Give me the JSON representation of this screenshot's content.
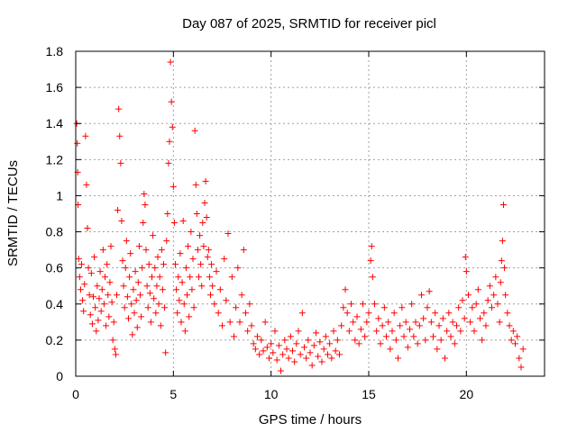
{
  "chart_data": {
    "type": "scatter",
    "title": "Day 087 of 2025, SRMTID for receiver picl",
    "xlabel": "GPS time / hours",
    "ylabel": "SRMTID / TECUs",
    "xlim": [
      0,
      24
    ],
    "ylim": [
      0,
      1.8
    ],
    "xticks": [
      0,
      5,
      10,
      15,
      20
    ],
    "xtick_labels": [
      "0",
      "5",
      "10",
      "15",
      "20"
    ],
    "yticks": [
      0,
      0.2,
      0.4,
      0.6,
      0.8,
      1.0,
      1.2,
      1.4,
      1.6,
      1.8
    ],
    "ytick_labels": [
      "0",
      "0.2",
      "0.4",
      "0.6",
      "0.8",
      "1",
      "1.2",
      "1.4",
      "1.6",
      "1.8"
    ],
    "grid": true,
    "marker": "+",
    "color": "#ff0000",
    "series": [
      {
        "name": "SRMTID",
        "points": [
          [
            0.05,
            1.4
          ],
          [
            0.08,
            1.29
          ],
          [
            0.1,
            1.13
          ],
          [
            0.12,
            0.95
          ],
          [
            0.15,
            0.65
          ],
          [
            0.2,
            0.55
          ],
          [
            0.25,
            0.48
          ],
          [
            0.3,
            0.62
          ],
          [
            0.35,
            0.42
          ],
          [
            0.4,
            0.36
          ],
          [
            0.45,
            0.51
          ],
          [
            0.5,
            1.33
          ],
          [
            0.55,
            1.06
          ],
          [
            0.6,
            0.82
          ],
          [
            0.65,
            0.6
          ],
          [
            0.7,
            0.45
          ],
          [
            0.75,
            0.34
          ],
          [
            0.8,
            0.57
          ],
          [
            0.85,
            0.29
          ],
          [
            0.9,
            0.44
          ],
          [
            0.95,
            0.66
          ],
          [
            1.0,
            0.38
          ],
          [
            1.05,
            0.25
          ],
          [
            1.1,
            0.5
          ],
          [
            1.15,
            0.31
          ],
          [
            1.2,
            0.43
          ],
          [
            1.25,
            0.58
          ],
          [
            1.3,
            0.36
          ],
          [
            1.35,
            0.48
          ],
          [
            1.4,
            0.7
          ],
          [
            1.45,
            0.4
          ],
          [
            1.5,
            0.55
          ],
          [
            1.55,
            0.28
          ],
          [
            1.6,
            0.62
          ],
          [
            1.65,
            0.45
          ],
          [
            1.7,
            0.33
          ],
          [
            1.75,
            0.52
          ],
          [
            1.8,
            0.72
          ],
          [
            1.85,
            0.41
          ],
          [
            1.9,
            0.2
          ],
          [
            1.95,
            0.3
          ],
          [
            2.0,
            0.15
          ],
          [
            2.05,
            0.12
          ],
          [
            2.1,
            0.45
          ],
          [
            2.15,
            0.92
          ],
          [
            2.2,
            1.48
          ],
          [
            2.25,
            1.33
          ],
          [
            2.3,
            1.18
          ],
          [
            2.35,
            0.86
          ],
          [
            2.4,
            0.64
          ],
          [
            2.45,
            0.5
          ],
          [
            2.5,
            0.38
          ],
          [
            2.55,
            0.6
          ],
          [
            2.6,
            0.75
          ],
          [
            2.65,
            0.44
          ],
          [
            2.7,
            0.32
          ],
          [
            2.75,
            0.55
          ],
          [
            2.8,
            0.68
          ],
          [
            2.85,
            0.4
          ],
          [
            2.9,
            0.23
          ],
          [
            2.95,
            0.48
          ],
          [
            3.0,
            0.35
          ],
          [
            3.05,
            0.58
          ],
          [
            3.1,
            0.42
          ],
          [
            3.15,
            0.27
          ],
          [
            3.2,
            0.52
          ],
          [
            3.25,
            0.72
          ],
          [
            3.3,
            0.45
          ],
          [
            3.35,
            0.33
          ],
          [
            3.4,
            0.6
          ],
          [
            3.45,
            0.85
          ],
          [
            3.5,
            1.01
          ],
          [
            3.55,
            0.95
          ],
          [
            3.6,
            0.7
          ],
          [
            3.65,
            0.5
          ],
          [
            3.7,
            0.38
          ],
          [
            3.75,
            0.62
          ],
          [
            3.8,
            0.46
          ],
          [
            3.85,
            0.3
          ],
          [
            3.9,
            0.55
          ],
          [
            3.95,
            0.78
          ],
          [
            4.0,
            0.43
          ],
          [
            4.05,
            0.6
          ],
          [
            4.1,
            0.35
          ],
          [
            4.15,
            0.5
          ],
          [
            4.2,
            0.66
          ],
          [
            4.25,
            0.4
          ],
          [
            4.3,
            0.55
          ],
          [
            4.35,
            0.28
          ],
          [
            4.4,
            0.7
          ],
          [
            4.45,
            0.48
          ],
          [
            4.5,
            0.62
          ],
          [
            4.55,
            0.38
          ],
          [
            4.6,
            0.13
          ],
          [
            4.65,
            0.75
          ],
          [
            4.7,
            0.9
          ],
          [
            4.75,
            1.18
          ],
          [
            4.8,
            1.3
          ],
          [
            4.85,
            1.74
          ],
          [
            4.9,
            1.52
          ],
          [
            4.95,
            1.38
          ],
          [
            5.0,
            1.05
          ],
          [
            5.05,
            0.85
          ],
          [
            5.1,
            0.62
          ],
          [
            5.15,
            0.48
          ],
          [
            5.2,
            0.35
          ],
          [
            5.25,
            0.55
          ],
          [
            5.3,
            0.42
          ],
          [
            5.35,
            0.68
          ],
          [
            5.4,
            0.3
          ],
          [
            5.45,
            0.52
          ],
          [
            5.5,
            0.86
          ],
          [
            5.55,
            0.4
          ],
          [
            5.6,
            0.25
          ],
          [
            5.65,
            0.6
          ],
          [
            5.7,
            0.45
          ],
          [
            5.75,
            0.72
          ],
          [
            5.8,
            0.33
          ],
          [
            5.85,
            0.55
          ],
          [
            5.9,
            0.8
          ],
          [
            5.95,
            0.48
          ],
          [
            6.0,
            0.65
          ],
          [
            6.05,
            0.38
          ],
          [
            6.1,
            1.36
          ],
          [
            6.15,
            1.06
          ],
          [
            6.2,
            0.9
          ],
          [
            6.25,
            0.7
          ],
          [
            6.3,
            0.55
          ],
          [
            6.35,
            0.78
          ],
          [
            6.4,
            0.62
          ],
          [
            6.45,
            0.5
          ],
          [
            6.5,
            0.85
          ],
          [
            6.55,
            0.72
          ],
          [
            6.6,
            0.96
          ],
          [
            6.65,
            1.08
          ],
          [
            6.7,
            0.88
          ],
          [
            6.75,
            0.66
          ],
          [
            6.8,
            0.7
          ],
          [
            6.85,
            0.55
          ],
          [
            6.9,
            0.45
          ],
          [
            6.95,
            0.62
          ],
          [
            7.0,
            0.5
          ],
          [
            7.1,
            0.4
          ],
          [
            7.2,
            0.58
          ],
          [
            7.3,
            0.35
          ],
          [
            7.4,
            0.48
          ],
          [
            7.5,
            0.28
          ],
          [
            7.6,
            0.65
          ],
          [
            7.7,
            0.42
          ],
          [
            7.8,
            0.79
          ],
          [
            7.9,
            0.3
          ],
          [
            8.0,
            0.55
          ],
          [
            8.1,
            0.22
          ],
          [
            8.2,
            0.38
          ],
          [
            8.3,
            0.6
          ],
          [
            8.4,
            0.3
          ],
          [
            8.5,
            0.45
          ],
          [
            8.6,
            0.7
          ],
          [
            8.7,
            0.35
          ],
          [
            8.8,
            0.25
          ],
          [
            8.9,
            0.4
          ],
          [
            9.0,
            0.28
          ],
          [
            9.1,
            0.18
          ],
          [
            9.2,
            0.15
          ],
          [
            9.3,
            0.22
          ],
          [
            9.4,
            0.12
          ],
          [
            9.5,
            0.2
          ],
          [
            9.6,
            0.14
          ],
          [
            9.7,
            0.3
          ],
          [
            9.8,
            0.16
          ],
          [
            9.9,
            0.1
          ],
          [
            10.0,
            0.18
          ],
          [
            10.1,
            0.13
          ],
          [
            10.2,
            0.25
          ],
          [
            10.3,
            0.09
          ],
          [
            10.4,
            0.17
          ],
          [
            10.5,
            0.03
          ],
          [
            10.6,
            0.12
          ],
          [
            10.7,
            0.2
          ],
          [
            10.8,
            0.15
          ],
          [
            10.9,
            0.1
          ],
          [
            11.0,
            0.22
          ],
          [
            11.1,
            0.14
          ],
          [
            11.2,
            0.08
          ],
          [
            11.3,
            0.18
          ],
          [
            11.4,
            0.25
          ],
          [
            11.5,
            0.12
          ],
          [
            11.6,
            0.35
          ],
          [
            11.7,
            0.16
          ],
          [
            11.8,
            0.1
          ],
          [
            11.9,
            0.2
          ],
          [
            12.0,
            0.13
          ],
          [
            12.1,
            0.06
          ],
          [
            12.2,
            0.17
          ],
          [
            12.3,
            0.24
          ],
          [
            12.4,
            0.11
          ],
          [
            12.5,
            0.19
          ],
          [
            12.6,
            0.08
          ],
          [
            12.7,
            0.15
          ],
          [
            12.8,
            0.22
          ],
          [
            12.9,
            0.12
          ],
          [
            13.0,
            0.18
          ],
          [
            13.1,
            0.1
          ],
          [
            13.2,
            0.25
          ],
          [
            13.3,
            0.14
          ],
          [
            13.4,
            0.2
          ],
          [
            13.5,
            0.12
          ],
          [
            13.6,
            0.28
          ],
          [
            13.7,
            0.38
          ],
          [
            13.8,
            0.48
          ],
          [
            13.9,
            0.35
          ],
          [
            14.0,
            0.25
          ],
          [
            14.1,
            0.4
          ],
          [
            14.2,
            0.3
          ],
          [
            14.3,
            0.2
          ],
          [
            14.4,
            0.33
          ],
          [
            14.5,
            0.18
          ],
          [
            14.6,
            0.26
          ],
          [
            14.7,
            0.4
          ],
          [
            14.8,
            0.22
          ],
          [
            14.9,
            0.3
          ],
          [
            15.0,
            0.35
          ],
          [
            15.1,
            0.64
          ],
          [
            15.15,
            0.72
          ],
          [
            15.2,
            0.55
          ],
          [
            15.3,
            0.4
          ],
          [
            15.4,
            0.25
          ],
          [
            15.5,
            0.32
          ],
          [
            15.6,
            0.18
          ],
          [
            15.7,
            0.28
          ],
          [
            15.8,
            0.38
          ],
          [
            15.9,
            0.22
          ],
          [
            16.0,
            0.3
          ],
          [
            16.1,
            0.15
          ],
          [
            16.2,
            0.25
          ],
          [
            16.3,
            0.35
          ],
          [
            16.4,
            0.2
          ],
          [
            16.5,
            0.1
          ],
          [
            16.6,
            0.28
          ],
          [
            16.7,
            0.38
          ],
          [
            16.8,
            0.22
          ],
          [
            16.9,
            0.3
          ],
          [
            17.0,
            0.16
          ],
          [
            17.1,
            0.26
          ],
          [
            17.2,
            0.4
          ],
          [
            17.3,
            0.22
          ],
          [
            17.4,
            0.3
          ],
          [
            17.5,
            0.18
          ],
          [
            17.6,
            0.28
          ],
          [
            17.7,
            0.45
          ],
          [
            17.8,
            0.32
          ],
          [
            17.9,
            0.2
          ],
          [
            18.0,
            0.38
          ],
          [
            18.1,
            0.47
          ],
          [
            18.2,
            0.3
          ],
          [
            18.3,
            0.22
          ],
          [
            18.4,
            0.35
          ],
          [
            18.5,
            0.15
          ],
          [
            18.6,
            0.28
          ],
          [
            18.7,
            0.2
          ],
          [
            18.8,
            0.32
          ],
          [
            18.9,
            0.1
          ],
          [
            19.0,
            0.25
          ],
          [
            19.1,
            0.35
          ],
          [
            19.2,
            0.22
          ],
          [
            19.3,
            0.3
          ],
          [
            19.4,
            0.18
          ],
          [
            19.5,
            0.28
          ],
          [
            19.6,
            0.38
          ],
          [
            19.7,
            0.25
          ],
          [
            19.8,
            0.42
          ],
          [
            19.9,
            0.32
          ],
          [
            19.95,
            0.66
          ],
          [
            20.0,
            0.58
          ],
          [
            20.1,
            0.45
          ],
          [
            20.2,
            0.3
          ],
          [
            20.3,
            0.38
          ],
          [
            20.4,
            0.25
          ],
          [
            20.5,
            0.4
          ],
          [
            20.6,
            0.48
          ],
          [
            20.7,
            0.32
          ],
          [
            20.8,
            0.2
          ],
          [
            20.9,
            0.35
          ],
          [
            21.0,
            0.28
          ],
          [
            21.1,
            0.42
          ],
          [
            21.2,
            0.5
          ],
          [
            21.3,
            0.38
          ],
          [
            21.4,
            0.45
          ],
          [
            21.5,
            0.55
          ],
          [
            21.6,
            0.4
          ],
          [
            21.7,
            0.3
          ],
          [
            21.75,
            0.52
          ],
          [
            21.8,
            0.64
          ],
          [
            21.85,
            0.75
          ],
          [
            21.9,
            0.95
          ],
          [
            21.95,
            0.6
          ],
          [
            22.0,
            0.45
          ],
          [
            22.1,
            0.35
          ],
          [
            22.2,
            0.28
          ],
          [
            22.3,
            0.2
          ],
          [
            22.4,
            0.25
          ],
          [
            22.5,
            0.18
          ],
          [
            22.6,
            0.22
          ],
          [
            22.7,
            0.1
          ],
          [
            22.8,
            0.05
          ],
          [
            22.9,
            0.15
          ]
        ]
      }
    ]
  }
}
